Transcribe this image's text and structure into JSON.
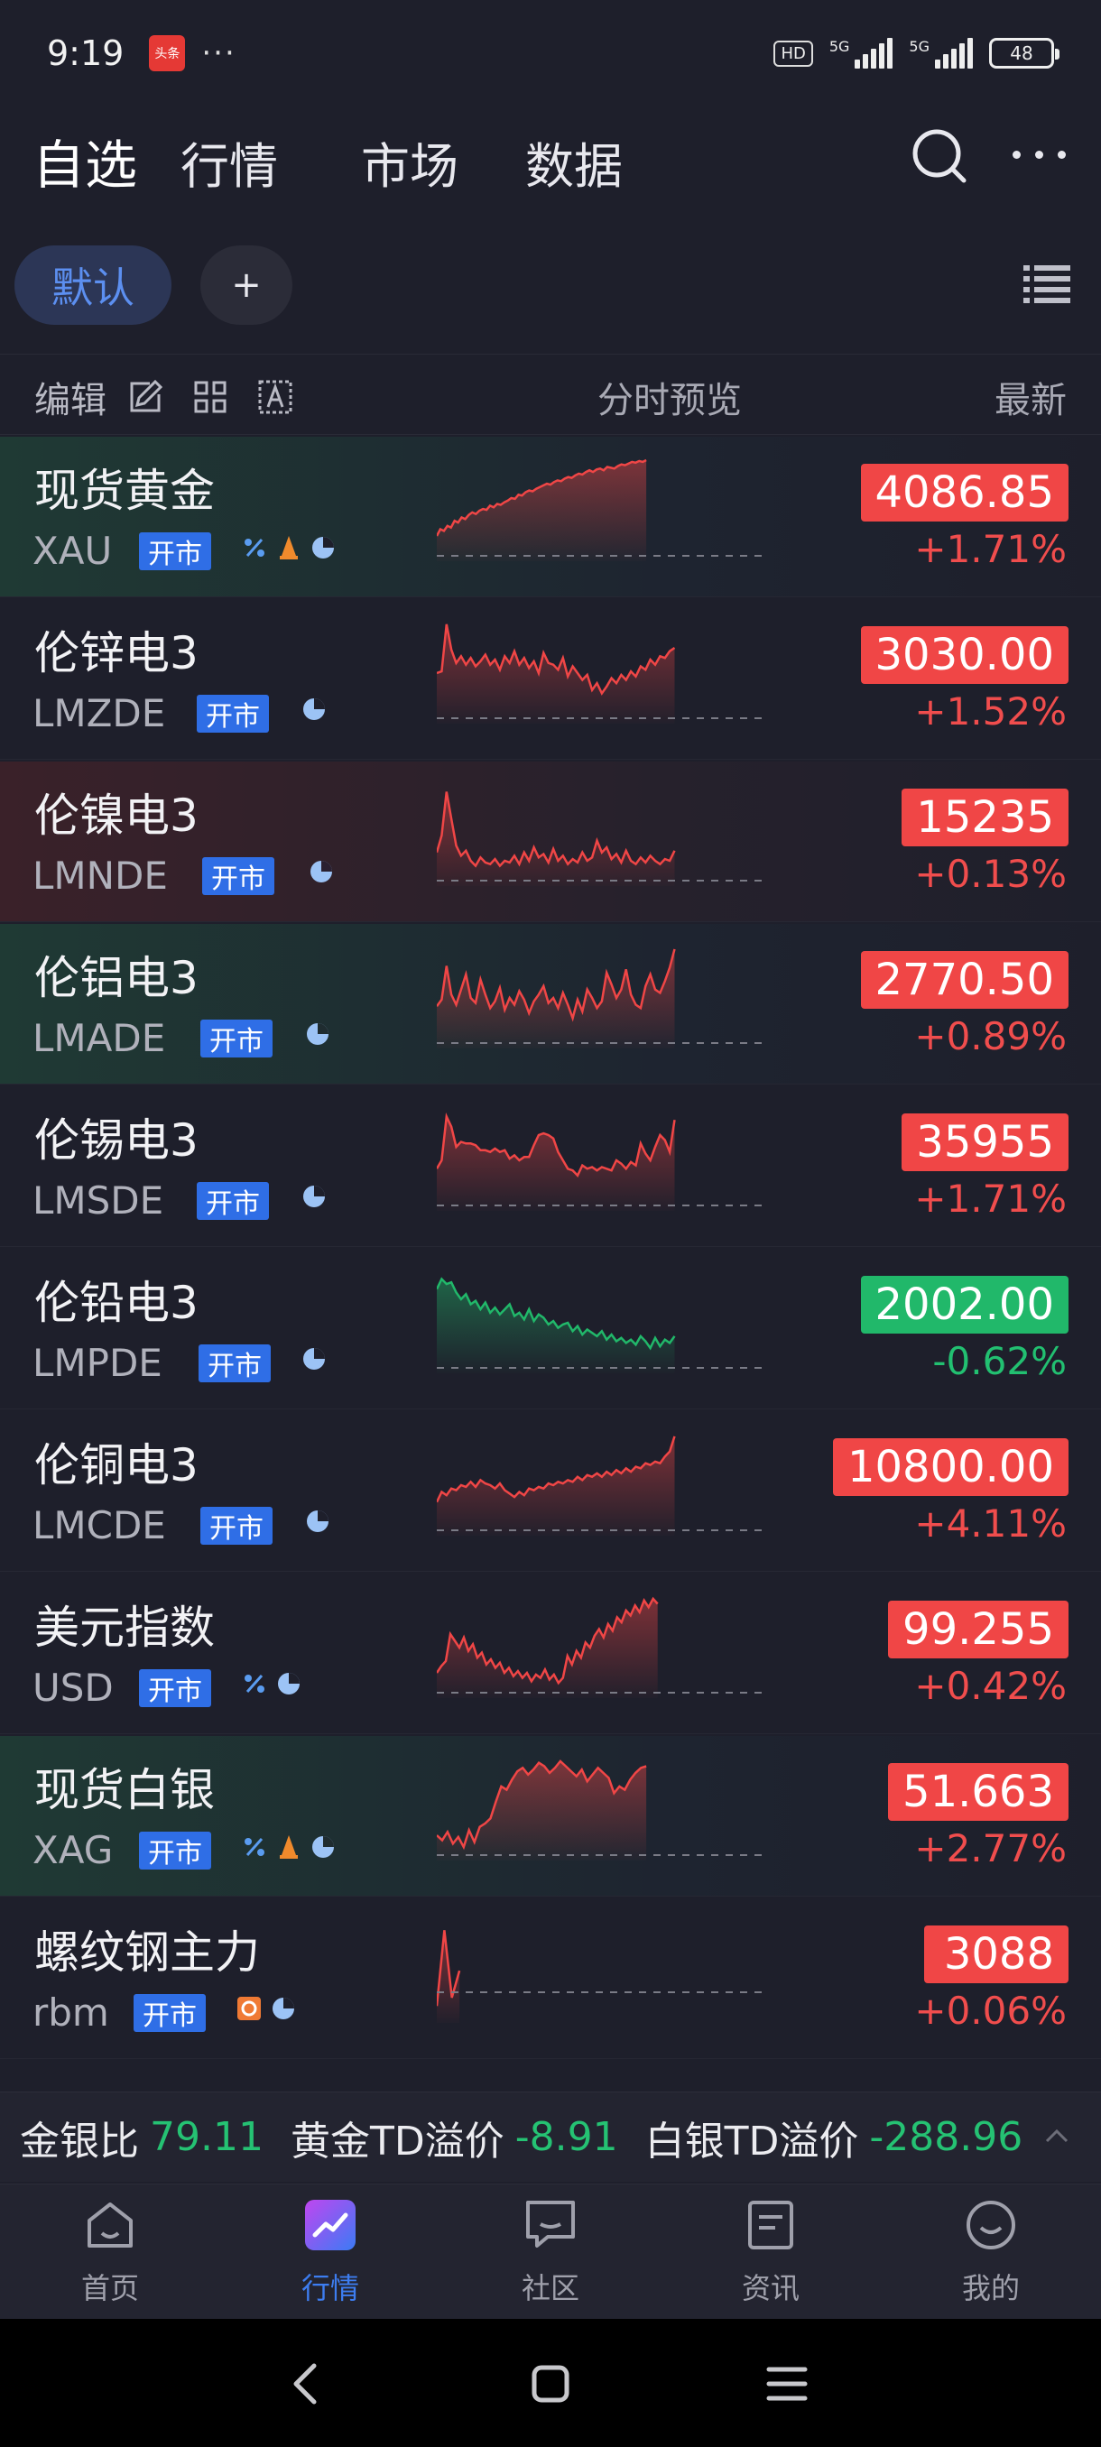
{
  "status_bar": {
    "time": "9:19",
    "badge": "头条",
    "dots": "···",
    "hd": "HD",
    "sim1": "5G",
    "sim2": "5G",
    "battery": "48"
  },
  "top_nav": {
    "tabs": [
      "自选",
      "行情",
      "市场",
      "数据"
    ],
    "active_tab": "自选"
  },
  "groups": {
    "default": "默认",
    "add": "+"
  },
  "columns": {
    "edit": "编辑",
    "preview": "分时预览",
    "latest": "最新"
  },
  "open_tag": "开市",
  "rows": [
    {
      "name": "现货黄金",
      "code": "XAU",
      "price": "4086.85",
      "change": "+1.71%",
      "direction": "up",
      "icons": [
        "percent-icon",
        "bell-icon",
        "pie-icon"
      ],
      "spark": [
        30,
        38,
        36,
        42,
        40,
        48,
        46,
        52,
        50,
        55,
        58,
        56,
        60,
        62,
        61,
        66,
        64,
        68,
        67,
        70,
        72,
        75,
        74,
        79,
        78,
        82,
        84,
        83,
        86,
        88,
        90,
        92,
        91,
        94,
        96,
        95,
        98,
        100,
        99,
        102,
        104,
        103,
        106,
        108,
        106,
        109,
        110,
        108,
        112,
        111,
        110,
        113,
        115,
        114,
        116,
        118,
        117,
        119,
        118,
        120
      ]
    },
    {
      "name": "伦锌电3",
      "code": "LMZDE",
      "price": "3030.00",
      "change": "+1.52%",
      "direction": "up",
      "icons": [
        "pie-icon"
      ],
      "spark": [
        60,
        62,
        118,
        88,
        72,
        80,
        70,
        78,
        68,
        74,
        82,
        70,
        76,
        64,
        80,
        72,
        86,
        70,
        78,
        66,
        74,
        60,
        84,
        72,
        70,
        64,
        78,
        56,
        68,
        60,
        52,
        58,
        40,
        48,
        36,
        44,
        54,
        48,
        58,
        52,
        62,
        56,
        68,
        64,
        76,
        70,
        80,
        78,
        86,
        90
      ]
    },
    {
      "name": "伦镍电3",
      "code": "LMNDE",
      "price": "15235",
      "change": "+0.13%",
      "direction": "up",
      "icons": [
        "pie-icon"
      ],
      "spark": [
        40,
        60,
        112,
        80,
        48,
        36,
        42,
        30,
        24,
        34,
        28,
        26,
        32,
        24,
        30,
        28,
        36,
        26,
        40,
        30,
        46,
        34,
        38,
        28,
        44,
        30,
        36,
        26,
        32,
        28,
        40,
        30,
        34,
        54,
        40,
        46,
        32,
        38,
        28,
        42,
        30,
        26,
        34,
        28,
        36,
        30,
        26,
        32,
        30,
        42
      ]
    },
    {
      "name": "伦铝电3",
      "code": "LMADE",
      "price": "2770.50",
      "change": "+0.89%",
      "direction": "up",
      "icons": [
        "pie-icon"
      ],
      "spark": [
        50,
        58,
        98,
        64,
        52,
        70,
        88,
        60,
        54,
        82,
        64,
        48,
        56,
        72,
        46,
        60,
        52,
        68,
        58,
        42,
        56,
        64,
        74,
        54,
        60,
        48,
        66,
        52,
        36,
        58,
        44,
        70,
        60,
        48,
        56,
        90,
        76,
        60,
        70,
        94,
        64,
        52,
        48,
        74,
        88,
        70,
        66,
        80,
        96,
        118
      ]
    },
    {
      "name": "伦锡电3",
      "code": "LMSDE",
      "price": "35955",
      "change": "+1.71%",
      "direction": "up",
      "icons": [
        "pie-icon"
      ],
      "spark": [
        50,
        60,
        112,
        100,
        76,
        82,
        80,
        80,
        78,
        72,
        72,
        70,
        74,
        70,
        72,
        62,
        66,
        60,
        64,
        64,
        78,
        90,
        92,
        90,
        86,
        70,
        60,
        50,
        48,
        42,
        54,
        50,
        52,
        48,
        52,
        50,
        48,
        60,
        56,
        50,
        58,
        54,
        80,
        68,
        60,
        76,
        90,
        84,
        70,
        108
      ]
    },
    {
      "name": "伦铅电3",
      "code": "LMPDE",
      "price": "2002.00",
      "change": "-0.62%",
      "direction": "down",
      "icons": [
        "pie-icon"
      ],
      "spark": [
        100,
        112,
        106,
        108,
        96,
        88,
        94,
        82,
        86,
        76,
        84,
        72,
        78,
        70,
        76,
        82,
        68,
        72,
        64,
        76,
        62,
        70,
        66,
        58,
        62,
        54,
        58,
        60,
        50,
        56,
        46,
        52,
        48,
        44,
        50,
        40,
        46,
        38,
        42,
        36,
        40,
        34,
        44,
        38,
        30,
        42,
        32,
        40,
        36,
        44
      ]
    },
    {
      "name": "伦铜电3",
      "code": "LMCDE",
      "price": "10800.00",
      "change": "+4.11%",
      "direction": "up",
      "icons": [
        "pie-icon"
      ],
      "spark": [
        40,
        52,
        48,
        56,
        54,
        60,
        58,
        64,
        58,
        66,
        62,
        60,
        56,
        62,
        54,
        50,
        46,
        52,
        48,
        56,
        54,
        58,
        56,
        62,
        60,
        64,
        62,
        66,
        64,
        70,
        66,
        72,
        70,
        74,
        70,
        76,
        72,
        78,
        74,
        80,
        76,
        82,
        80,
        86,
        84,
        88,
        86,
        94,
        100,
        118
      ]
    },
    {
      "name": "美元指数",
      "code": "USD",
      "price": "99.255",
      "change": "+0.42%",
      "direction": "up",
      "icons": [
        "percent-icon",
        "pie-icon"
      ],
      "spark": [
        30,
        38,
        44,
        76,
        68,
        60,
        72,
        56,
        64,
        48,
        54,
        40,
        46,
        36,
        42,
        30,
        36,
        26,
        32,
        24,
        30,
        20,
        28,
        24,
        34,
        22,
        28,
        18,
        24,
        50,
        40,
        56,
        48,
        66,
        60,
        74,
        82,
        72,
        88,
        80,
        96,
        90,
        104,
        98,
        110,
        102,
        116,
        108,
        118,
        112
      ]
    },
    {
      "name": "现货白银",
      "code": "XAG",
      "price": "51.663",
      "change": "+2.77%",
      "direction": "up",
      "icons": [
        "percent-icon",
        "bell-icon",
        "pie-icon"
      ],
      "spark": [
        30,
        24,
        34,
        20,
        28,
        16,
        36,
        22,
        40,
        44,
        50,
        70,
        88,
        84,
        96,
        106,
        110,
        102,
        108,
        116,
        112,
        104,
        110,
        118,
        112,
        106,
        100,
        108,
        94,
        102,
        110,
        104,
        98,
        80,
        88,
        84,
        96,
        104,
        110,
        112
      ]
    },
    {
      "name": "螺纹钢主力",
      "code": "rbm",
      "price": "3088",
      "change": "+0.06%",
      "direction": "up",
      "icons": [
        "cycle-icon",
        "pie-icon"
      ],
      "spark": [
        20,
        110,
        30,
        62
      ]
    }
  ],
  "ticker": [
    {
      "label": "金银比",
      "value": "79.11"
    },
    {
      "label": "黄金TD溢价",
      "value": "-8.91"
    },
    {
      "label": "白银TD溢价",
      "value": "-288.96"
    }
  ],
  "bottom_nav": [
    {
      "label": "首页",
      "icon": "home-icon"
    },
    {
      "label": "行情",
      "icon": "market-icon",
      "active": true
    },
    {
      "label": "社区",
      "icon": "community-icon"
    },
    {
      "label": "资讯",
      "icon": "news-icon"
    },
    {
      "label": "我的",
      "icon": "profile-icon"
    }
  ],
  "colors": {
    "up": "#f04646",
    "down": "#21b86a",
    "accent": "#2f6ee6",
    "background": "#1e1f2b"
  }
}
